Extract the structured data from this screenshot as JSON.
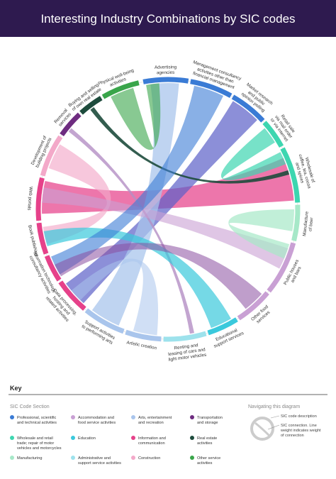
{
  "header": {
    "title": "Interesting Industry Combinations by SIC codes"
  },
  "nodes": [
    {
      "lines": [
        "Advertising",
        "agencies"
      ],
      "color": "#3a7bd5"
    },
    {
      "lines": [
        "Management consultancy",
        "activities other than",
        "financial management"
      ],
      "color": "#3a7bd5"
    },
    {
      "lines": [
        "Market research",
        "and public",
        "opinion polling"
      ],
      "color": "#3a7bd5"
    },
    {
      "lines": [
        "Retail sale",
        "via mail order",
        "or via internet"
      ],
      "color": "#3dd6b0"
    },
    {
      "lines": [
        "Wholesale of",
        "coffee, tea, cocoa",
        "and spices"
      ],
      "color": "#3dd6b0"
    },
    {
      "lines": [
        "Manufacture",
        "of beer"
      ],
      "color": "#a6e8c8"
    },
    {
      "lines": [
        "Public houses",
        "and bars"
      ],
      "color": "#c9a0d4"
    },
    {
      "lines": [
        "Other food",
        "services"
      ],
      "color": "#c9a0d4"
    },
    {
      "lines": [
        "Educational",
        "support services"
      ],
      "color": "#3ac9dc"
    },
    {
      "lines": [
        "Renting and",
        "leasing of cars and",
        "light motor vehicles"
      ],
      "color": "#9de2ec"
    },
    {
      "lines": [
        "Artistic creation"
      ],
      "color": "#a9c5ec"
    },
    {
      "lines": [
        "Support activities",
        "to performing arts"
      ],
      "color": "#a9c5ec"
    },
    {
      "lines": [
        "Data processing,",
        "hosting and",
        "related activities"
      ],
      "color": "#e6418a"
    },
    {
      "lines": [
        "Information technology",
        "consultancy activities"
      ],
      "color": "#e6418a"
    },
    {
      "lines": [
        "Book publishing"
      ],
      "color": "#e6418a"
    },
    {
      "lines": [
        "Web portals"
      ],
      "color": "#e6418a"
    },
    {
      "lines": [
        "Development of",
        "building projects"
      ],
      "color": "#f3a9c9"
    },
    {
      "lines": [
        "Removal",
        "services"
      ],
      "color": "#6e2c80"
    },
    {
      "lines": [
        "Buying and selling",
        "of own real estate"
      ],
      "color": "#1d4b3c"
    },
    {
      "lines": [
        "Physical well-being",
        "activities"
      ],
      "color": "#39a54a"
    }
  ],
  "key": {
    "title": "Key",
    "section_title": "SIC Code Section",
    "items": [
      {
        "lines": [
          "Professional, scientific",
          "and technical activities"
        ],
        "color": "#3a7bd5"
      },
      {
        "lines": [
          "Accommodation and",
          "food service activities"
        ],
        "color": "#c9a0d4"
      },
      {
        "lines": [
          "Arts, entertainment",
          "and recreation"
        ],
        "color": "#a9c5ec"
      },
      {
        "lines": [
          "Transportation",
          "and storage"
        ],
        "color": "#6e2c80"
      },
      {
        "lines": [
          "Wholesale and retail",
          "trade; repair of motor",
          "vehicles and motorcycles"
        ],
        "color": "#3dd6b0"
      },
      {
        "lines": [
          "Education"
        ],
        "color": "#3ac9dc"
      },
      {
        "lines": [
          "Information and",
          "communication"
        ],
        "color": "#e6418a"
      },
      {
        "lines": [
          "Real estate",
          "activities"
        ],
        "color": "#1d4b3c"
      },
      {
        "lines": [
          "Manufacturing"
        ],
        "color": "#a6e8c8"
      },
      {
        "lines": [
          "Administrative and",
          "support service activities"
        ],
        "color": "#9de2ec"
      },
      {
        "lines": [
          "Construction"
        ],
        "color": "#f3a9c9"
      },
      {
        "lines": [
          "Other service",
          "activities"
        ],
        "color": "#39a54a"
      }
    ],
    "nav_title": "Navigating this diagram",
    "nav_description": "SIC code description",
    "nav_connection": [
      "SIC connection. Line",
      "weight indicates weight",
      "of connection"
    ]
  }
}
